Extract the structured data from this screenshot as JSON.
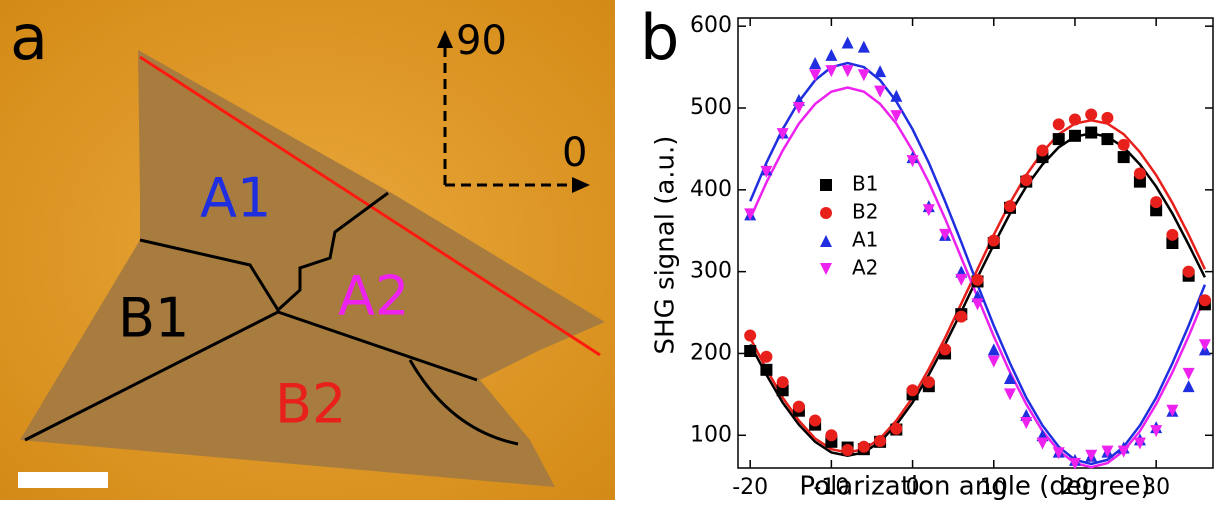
{
  "panel_a": {
    "label": "a",
    "direction_labels": [
      "90",
      "0"
    ],
    "regions": [
      "A1",
      "A2",
      "B1",
      "B2"
    ]
  },
  "chart_data": {
    "type": "scatter",
    "panel_label": "b",
    "x_label": "Polarization angle (degree)",
    "y_label": "SHG signal (a.u.)",
    "x": [
      -20,
      -18,
      -16,
      -14,
      -12,
      -10,
      -8,
      -6,
      -4,
      -2,
      0,
      2,
      4,
      6,
      8,
      10,
      12,
      14,
      16,
      18,
      20,
      22,
      24,
      26,
      28,
      30,
      32,
      34,
      36
    ],
    "series": [
      {
        "name": "B1",
        "color": "#000000",
        "marker": "square",
        "values": [
          203,
          180,
          155,
          130,
          113,
          92,
          85,
          83,
          92,
          107,
          150,
          160,
          200,
          248,
          288,
          335,
          378,
          410,
          440,
          462,
          466,
          470,
          462,
          440,
          410,
          375,
          335,
          295,
          260
        ],
        "fit": [
          211,
          174,
          140,
          113,
          92,
          79,
          75,
          79,
          92,
          113,
          140,
          174,
          211,
          251,
          293,
          333,
          371,
          404,
          431,
          452,
          465,
          469,
          465,
          452,
          431,
          404,
          371,
          333,
          293
        ]
      },
      {
        "name": "B2",
        "color": "#e8201c",
        "marker": "circle",
        "values": [
          222,
          196,
          165,
          135,
          118,
          100,
          82,
          86,
          93,
          108,
          155,
          165,
          205,
          245,
          290,
          338,
          380,
          412,
          448,
          480,
          486,
          492,
          488,
          455,
          420,
          385,
          345,
          300,
          265
        ],
        "fit": [
          219,
          181,
          146,
          118,
          96,
          83,
          79,
          83,
          96,
          118,
          146,
          181,
          219,
          261,
          303,
          345,
          384,
          418,
          446,
          468,
          481,
          485,
          481,
          468,
          446,
          418,
          384,
          345,
          303
        ]
      },
      {
        "name": "A1",
        "color": "#1f2fe0",
        "marker": "triangle-up",
        "values": [
          370,
          425,
          470,
          510,
          555,
          565,
          580,
          575,
          545,
          515,
          440,
          380,
          345,
          300,
          270,
          205,
          170,
          125,
          100,
          80,
          70,
          75,
          80,
          85,
          95,
          110,
          130,
          160,
          205
        ],
        "fit": [
          386,
          433,
          474,
          508,
          534,
          550,
          555,
          550,
          534,
          508,
          474,
          433,
          386,
          336,
          284,
          234,
          188,
          146,
          112,
          86,
          70,
          65,
          70,
          86,
          112,
          146,
          188,
          234,
          284
        ]
      },
      {
        "name": "A2",
        "color": "#ee22ee",
        "marker": "triangle-down",
        "values": [
          370,
          422,
          468,
          500,
          540,
          545,
          545,
          540,
          520,
          490,
          435,
          375,
          345,
          290,
          260,
          190,
          150,
          115,
          90,
          78,
          65,
          75,
          80,
          80,
          90,
          105,
          130,
          175,
          210
        ],
        "fit": [
          365,
          409,
          448,
          481,
          505,
          520,
          525,
          520,
          505,
          481,
          448,
          409,
          365,
          317,
          269,
          221,
          177,
          138,
          105,
          81,
          66,
          61,
          66,
          81,
          105,
          138,
          177,
          221,
          269
        ]
      }
    ],
    "xlim": [
      -21.5,
      37
    ],
    "ylim": [
      60,
      610
    ],
    "xticks": [
      -20,
      -10,
      0,
      10,
      20,
      30
    ],
    "yticks": [
      100,
      200,
      300,
      400,
      500,
      600
    ]
  }
}
